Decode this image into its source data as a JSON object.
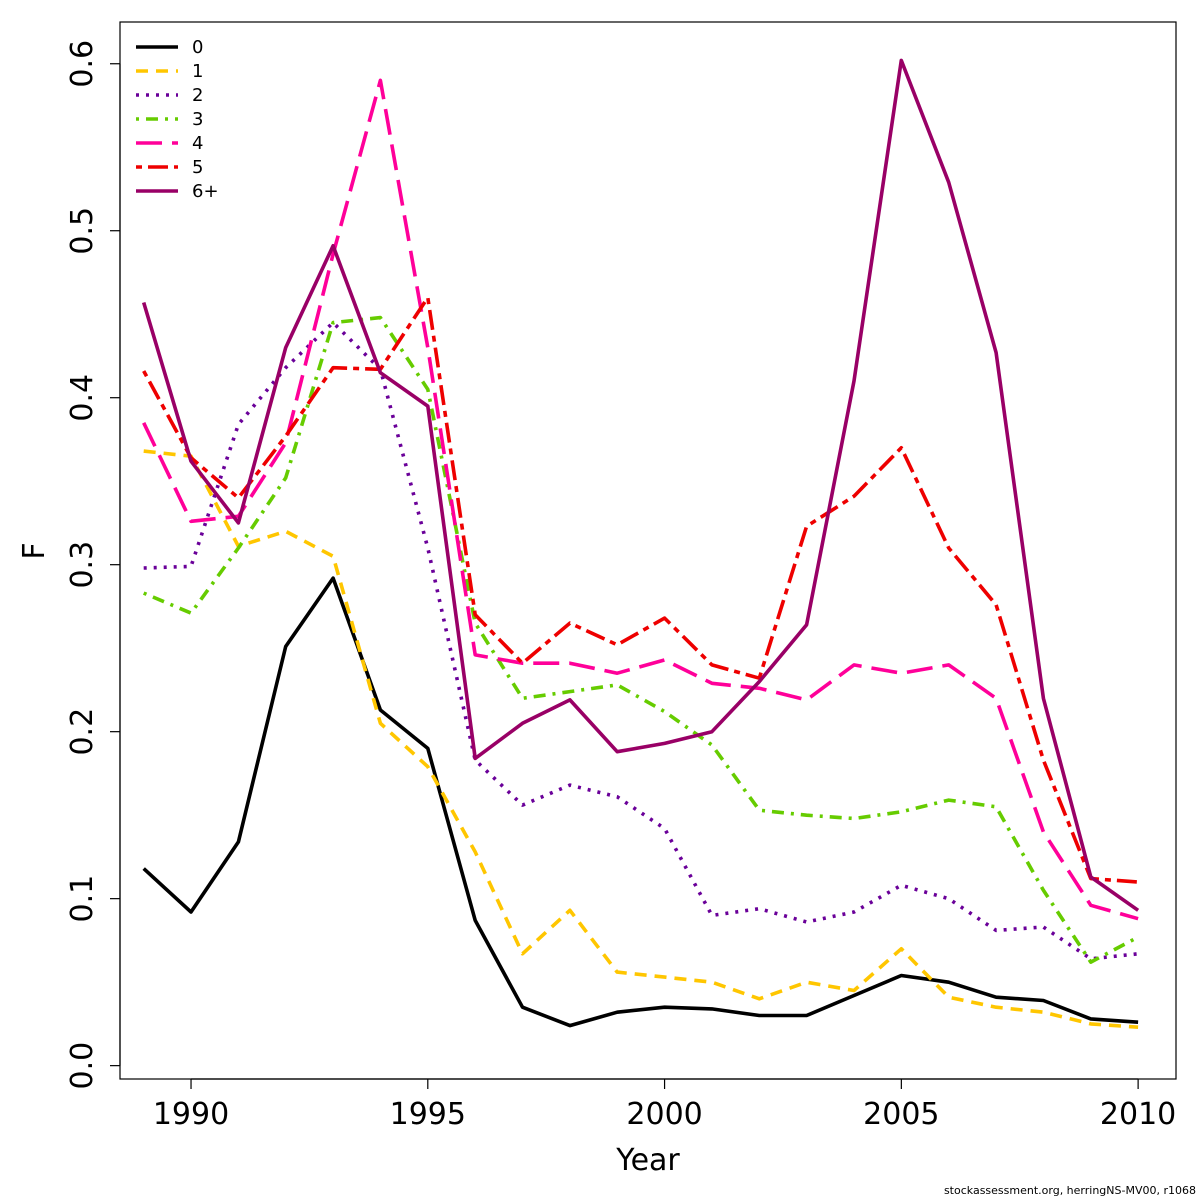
{
  "chart_data": {
    "type": "line",
    "xlabel": "Year",
    "ylabel": "F",
    "xlim": [
      1988.5,
      2010.8
    ],
    "ylim": [
      -0.008,
      0.625
    ],
    "x_ticks": [
      1990,
      1995,
      2000,
      2005,
      2010
    ],
    "y_ticks": [
      "0.0",
      "0.1",
      "0.2",
      "0.3",
      "0.4",
      "0.5",
      "0.6"
    ],
    "legend_position": "top-left",
    "x": [
      1989,
      1990,
      1991,
      1992,
      1993,
      1994,
      1995,
      1996,
      1997,
      1998,
      1999,
      2000,
      2001,
      2002,
      2003,
      2004,
      2005,
      2006,
      2007,
      2008,
      2009,
      2010
    ],
    "series": [
      {
        "name": "0",
        "color": "#000000",
        "dash": "solid",
        "values": [
          0.118,
          0.092,
          0.134,
          0.251,
          0.292,
          0.213,
          0.19,
          0.087,
          0.035,
          0.024,
          0.032,
          0.035,
          0.034,
          0.03,
          0.03,
          0.042,
          0.054,
          0.05,
          0.041,
          0.039,
          0.028,
          0.026
        ]
      },
      {
        "name": "1",
        "color": "#FFC600",
        "dash": "dashed",
        "values": [
          0.368,
          0.365,
          0.311,
          0.32,
          0.305,
          0.205,
          0.179,
          0.128,
          0.067,
          0.093,
          0.056,
          0.053,
          0.05,
          0.04,
          0.05,
          0.045,
          0.07,
          0.041,
          0.035,
          0.032,
          0.025,
          0.023
        ]
      },
      {
        "name": "2",
        "color": "#6A0099",
        "dash": "dotted",
        "values": [
          0.298,
          0.299,
          0.384,
          0.418,
          0.445,
          0.417,
          0.31,
          0.183,
          0.156,
          0.168,
          0.161,
          0.142,
          0.09,
          0.094,
          0.086,
          0.092,
          0.108,
          0.1,
          0.081,
          0.083,
          0.064,
          0.067
        ]
      },
      {
        "name": "3",
        "color": "#66CC00",
        "dash": "dotdash",
        "values": [
          0.283,
          0.271,
          0.31,
          0.352,
          0.445,
          0.448,
          0.405,
          0.265,
          0.22,
          0.224,
          0.228,
          0.212,
          0.192,
          0.153,
          0.15,
          0.148,
          0.152,
          0.159,
          0.155,
          0.105,
          0.062,
          0.077
        ]
      },
      {
        "name": "4",
        "color": "#FF0099",
        "dash": "longdash",
        "values": [
          0.385,
          0.326,
          0.329,
          0.373,
          0.486,
          0.59,
          0.43,
          0.246,
          0.241,
          0.241,
          0.235,
          0.243,
          0.229,
          0.226,
          0.219,
          0.24,
          0.235,
          0.24,
          0.22,
          0.14,
          0.096,
          0.088
        ]
      },
      {
        "name": "5",
        "color": "#EE0000",
        "dash": "twodash",
        "values": [
          0.416,
          0.364,
          0.34,
          0.377,
          0.418,
          0.417,
          0.46,
          0.27,
          0.241,
          0.265,
          0.252,
          0.268,
          0.24,
          0.232,
          0.323,
          0.341,
          0.37,
          0.31,
          0.276,
          0.183,
          0.112,
          0.11
        ]
      },
      {
        "name": "6+",
        "color": "#990066",
        "dash": "solid",
        "values": [
          0.457,
          0.362,
          0.325,
          0.43,
          0.491,
          0.415,
          0.395,
          0.184,
          0.205,
          0.219,
          0.188,
          0.193,
          0.2,
          0.23,
          0.264,
          0.41,
          0.602,
          0.529,
          0.427,
          0.22,
          0.113,
          0.093
        ]
      }
    ]
  },
  "credit": "stockassessment.org, herringNS-MV00, r1068"
}
